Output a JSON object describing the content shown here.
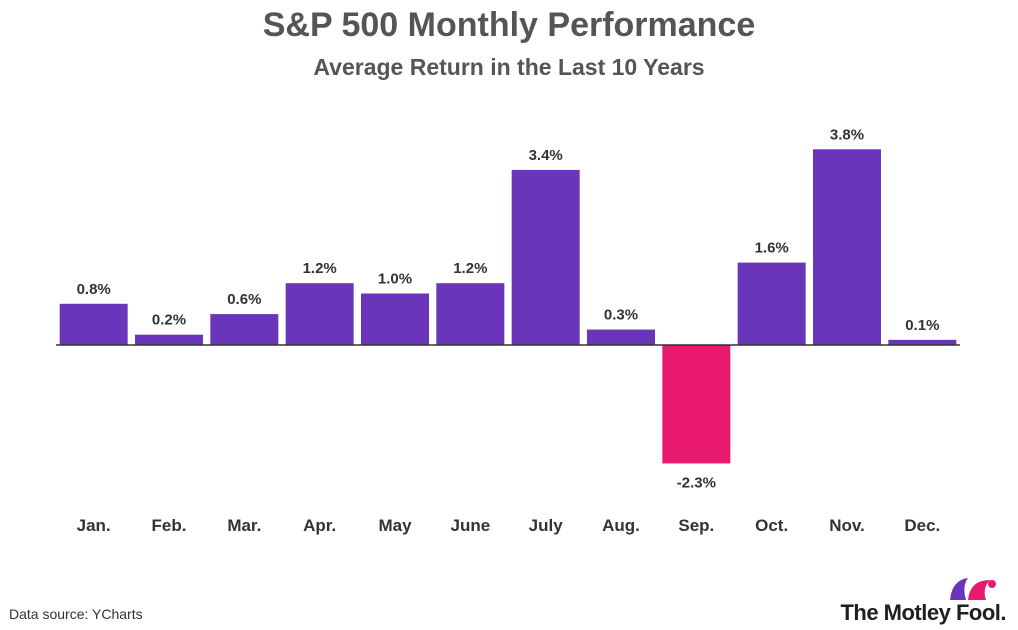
{
  "title": "S&P 500 Monthly Performance",
  "subtitle": "Average Return in the Last 10 Years",
  "source": "Data source: YCharts",
  "brand": "The Motley Fool.",
  "logo_icon": "jester-hat-icon",
  "colors": {
    "positive": "#6a35b8",
    "negative": "#e8196e",
    "baseline": "#333333",
    "label": "#333333",
    "logo_left": "#6a35b8",
    "logo_right": "#e8196e"
  },
  "chart_data": {
    "type": "bar",
    "title": "S&P 500 Monthly Performance",
    "subtitle": "Average Return in the Last 10 Years",
    "categories": [
      "Jan.",
      "Feb.",
      "Mar.",
      "Apr.",
      "May",
      "June",
      "July",
      "Aug.",
      "Sep.",
      "Oct.",
      "Nov.",
      "Dec."
    ],
    "values": [
      0.8,
      0.2,
      0.6,
      1.2,
      1.0,
      1.2,
      3.4,
      0.3,
      -2.3,
      1.6,
      3.8,
      0.1
    ],
    "value_labels": [
      "0.8%",
      "0.2%",
      "0.6%",
      "1.2%",
      "1.0%",
      "1.2%",
      "3.4%",
      "0.3%",
      "-2.3%",
      "1.6%",
      "3.8%",
      "0.1%"
    ],
    "unit": "%",
    "xlabel": "",
    "ylabel": "",
    "grid": false,
    "legend": "none"
  }
}
